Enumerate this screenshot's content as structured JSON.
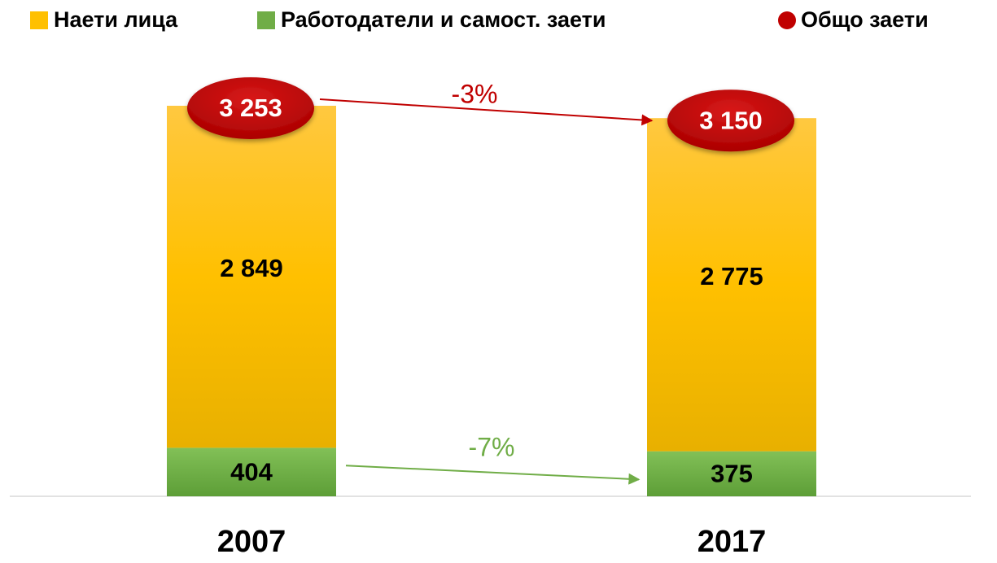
{
  "chart_data": {
    "type": "stacked_bar",
    "categories": [
      "2007",
      "2017"
    ],
    "series": [
      {
        "name": "Наети лица",
        "color": "#ffc000",
        "marker": "square",
        "values": [
          2849,
          2775
        ],
        "value_labels": [
          "2 849",
          "2 775"
        ]
      },
      {
        "name": "Работодатели и самост. заети",
        "color": "#70ad47",
        "marker": "square",
        "values": [
          404,
          375
        ],
        "value_labels": [
          "404",
          "375"
        ]
      },
      {
        "name": "Общо заети",
        "color": "#c00000",
        "marker": "circle",
        "values": [
          3253,
          3150
        ],
        "value_labels": [
          "3 253",
          "3 150"
        ]
      }
    ],
    "annotations": [
      {
        "text": "-3%",
        "color": "#c00000"
      },
      {
        "text": "-7%",
        "color": "#70ad47"
      }
    ]
  }
}
